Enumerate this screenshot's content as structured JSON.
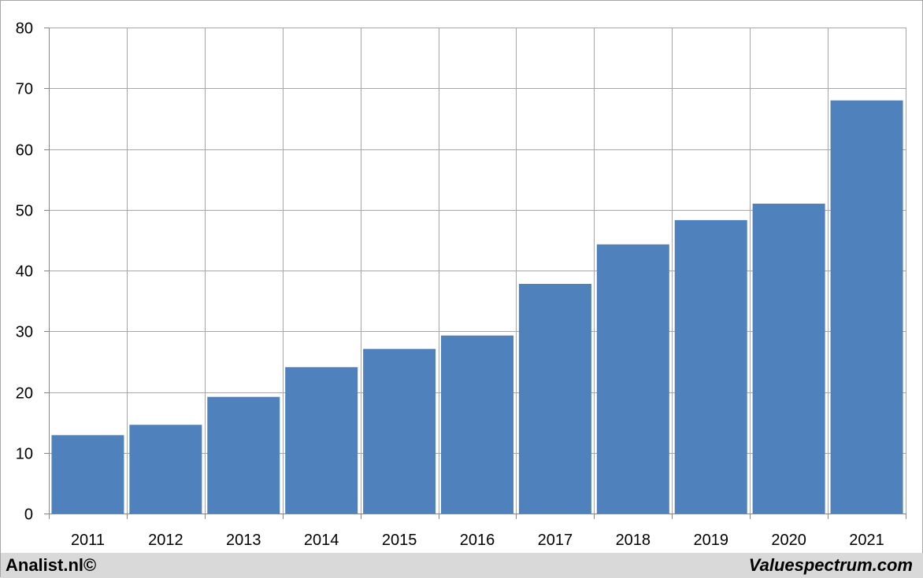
{
  "chart_data": {
    "type": "bar",
    "categories": [
      "2011",
      "2012",
      "2013",
      "2014",
      "2015",
      "2016",
      "2017",
      "2018",
      "2019",
      "2020",
      "2021"
    ],
    "values": [
      12.9,
      14.6,
      19.2,
      24.1,
      27.1,
      29.3,
      37.8,
      44.3,
      48.3,
      51.0,
      68.0
    ],
    "title": "",
    "xlabel": "",
    "ylabel": "",
    "ylim": [
      0,
      80
    ],
    "yticks": [
      "0",
      "10",
      "20",
      "30",
      "40",
      "50",
      "60",
      "70",
      "80"
    ],
    "grid": true,
    "legend": "none",
    "bar_color": "#4f81bd",
    "grid_color": "#a6a6a6"
  },
  "footer": {
    "left": "Analist.nl©",
    "right": "Valuespectrum.com",
    "background": "#d9d9d9"
  }
}
